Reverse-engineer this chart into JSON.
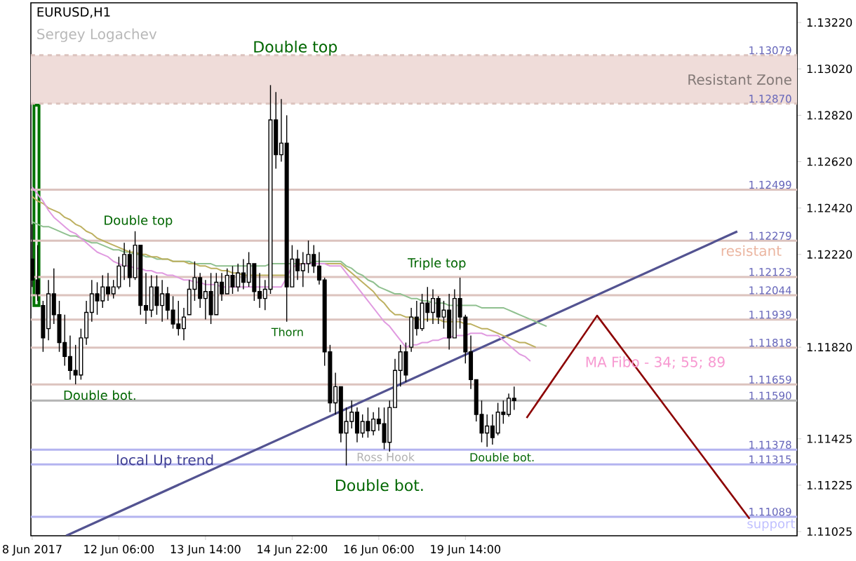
{
  "chart_data": {
    "type": "candlestick",
    "title": "EURUSD,H1",
    "subtitle": "Sergey Logachev",
    "categories": [
      "8 Jun 2017",
      null,
      null,
      null,
      null,
      null,
      null,
      null,
      null,
      null,
      null,
      null,
      null,
      null,
      null,
      null,
      "12 Jun 06:00",
      null,
      null,
      null,
      null,
      null,
      null,
      null,
      null,
      null,
      null,
      null,
      null,
      null,
      null,
      null,
      "13 Jun 14:00",
      null,
      null,
      null,
      null,
      null,
      null,
      null,
      null,
      null,
      null,
      null,
      null,
      null,
      null,
      null,
      "14 Jun 22:00",
      null,
      null,
      null,
      null,
      null,
      null,
      null,
      null,
      null,
      null,
      null,
      null,
      null,
      null,
      null,
      "16 Jun 06:00",
      null,
      null,
      null,
      null,
      null,
      null,
      null,
      null,
      null,
      null,
      null,
      null,
      null,
      null,
      null,
      "19 Jun 14:00",
      null,
      null,
      null,
      null,
      null,
      null,
      null,
      null,
      null,
      null,
      null,
      null,
      null,
      null,
      null,
      null,
      null,
      null,
      null,
      null,
      null,
      null,
      null,
      null,
      null,
      null,
      null,
      null,
      null,
      null,
      null,
      null,
      null,
      null,
      null,
      null,
      null,
      null,
      null,
      null,
      null,
      null,
      null,
      null,
      null,
      null,
      null,
      null,
      null,
      null,
      null,
      null,
      null,
      null,
      null,
      null,
      null,
      null,
      null,
      null,
      null
    ],
    "ohlc": [
      [
        1.122,
        1.1235,
        1.1208,
        1.1211
      ],
      [
        1.1211,
        1.1226,
        1.1202,
        1.1205
      ],
      [
        1.12,
        1.1202,
        1.118,
        1.1186
      ],
      [
        1.119,
        1.1211,
        1.1185,
        1.1205
      ],
      [
        1.1205,
        1.1216,
        1.1192,
        1.1196
      ],
      [
        1.1196,
        1.1202,
        1.118,
        1.1184
      ],
      [
        1.1184,
        1.1196,
        1.1174,
        1.1178
      ],
      [
        1.1178,
        1.1187,
        1.1168,
        1.1172
      ],
      [
        1.1172,
        1.1183,
        1.1166,
        1.117
      ],
      [
        1.117,
        1.119,
        1.1168,
        1.1186
      ],
      [
        1.1186,
        1.1202,
        1.1183,
        1.1197
      ],
      [
        1.1197,
        1.1211,
        1.1193,
        1.1205
      ],
      [
        1.1205,
        1.121,
        1.1196,
        1.1202
      ],
      [
        1.1202,
        1.1213,
        1.1199,
        1.1208
      ],
      [
        1.1208,
        1.1214,
        1.1202,
        1.1205
      ],
      [
        1.1205,
        1.1211,
        1.1203,
        1.1208
      ],
      [
        1.1208,
        1.1221,
        1.1207,
        1.1217
      ],
      [
        1.1217,
        1.1227,
        1.1211,
        1.1222
      ],
      [
        1.1222,
        1.1224,
        1.1208,
        1.1212
      ],
      [
        1.1212,
        1.1232,
        1.1211,
        1.1226
      ],
      [
        1.1226,
        1.1226,
        1.1196,
        1.12
      ],
      [
        1.12,
        1.1214,
        1.1192,
        1.1198
      ],
      [
        1.1198,
        1.1213,
        1.1195,
        1.1208
      ],
      [
        1.1208,
        1.1213,
        1.1196,
        1.12
      ],
      [
        1.12,
        1.1211,
        1.1193,
        1.1205
      ],
      [
        1.1205,
        1.1208,
        1.1194,
        1.1198
      ],
      [
        1.1198,
        1.1204,
        1.119,
        1.1192
      ],
      [
        1.1192,
        1.1202,
        1.1187,
        1.119
      ],
      [
        1.119,
        1.1199,
        1.1185,
        1.1195
      ],
      [
        1.1196,
        1.1211,
        1.1196,
        1.1207
      ],
      [
        1.1207,
        1.1219,
        1.1202,
        1.1212
      ],
      [
        1.1212,
        1.1214,
        1.1199,
        1.1203
      ],
      [
        1.1203,
        1.1211,
        1.1194,
        1.1206
      ],
      [
        1.1206,
        1.1214,
        1.1192,
        1.1196
      ],
      [
        1.1196,
        1.1214,
        1.1196,
        1.121
      ],
      [
        1.121,
        1.1214,
        1.1202,
        1.1205
      ],
      [
        1.1205,
        1.1216,
        1.1205,
        1.1213
      ],
      [
        1.1213,
        1.1217,
        1.1205,
        1.1208
      ],
      [
        1.1208,
        1.1218,
        1.1206,
        1.1214
      ],
      [
        1.1214,
        1.122,
        1.1207,
        1.121
      ],
      [
        1.121,
        1.1223,
        1.1208,
        1.1218
      ],
      [
        1.1218,
        1.1218,
        1.1202,
        1.1206
      ],
      [
        1.1206,
        1.1214,
        1.1199,
        1.1203
      ],
      [
        1.1203,
        1.1211,
        1.1198,
        1.1207
      ],
      [
        1.1207,
        1.1295,
        1.1205,
        1.128
      ],
      [
        1.128,
        1.1292,
        1.1259,
        1.1265
      ],
      [
        1.1265,
        1.1289,
        1.1262,
        1.127
      ],
      [
        1.127,
        1.1282,
        1.1193,
        1.1208
      ],
      [
        1.1208,
        1.1226,
        1.1208,
        1.122
      ],
      [
        1.122,
        1.1224,
        1.1211,
        1.1215
      ],
      [
        1.1215,
        1.1223,
        1.1208,
        1.1218
      ],
      [
        1.1218,
        1.1228,
        1.1214,
        1.1222
      ],
      [
        1.1222,
        1.1226,
        1.1214,
        1.1217
      ],
      [
        1.1217,
        1.1223,
        1.1209,
        1.1211
      ],
      [
        1.1211,
        1.1212,
        1.1174,
        1.118
      ],
      [
        1.118,
        1.1183,
        1.1154,
        1.1158
      ],
      [
        1.1158,
        1.1171,
        1.1153,
        1.1165
      ],
      [
        1.1165,
        1.1165,
        1.1141,
        1.1145
      ],
      [
        1.1145,
        1.1156,
        1.1131,
        1.115
      ],
      [
        1.115,
        1.1159,
        1.1147,
        1.1154
      ],
      [
        1.1154,
        1.1156,
        1.1141,
        1.1145
      ],
      [
        1.1145,
        1.1153,
        1.1143,
        1.115
      ],
      [
        1.115,
        1.1156,
        1.1143,
        1.1146
      ],
      [
        1.1146,
        1.1154,
        1.1144,
        1.1151
      ],
      [
        1.1151,
        1.1156,
        1.1146,
        1.1149
      ],
      [
        1.1149,
        1.1156,
        1.1138,
        1.1141
      ],
      [
        1.1141,
        1.1159,
        1.1137,
        1.1156
      ],
      [
        1.1156,
        1.1177,
        1.1156,
        1.1172
      ],
      [
        1.1172,
        1.1183,
        1.1165,
        1.118
      ],
      [
        1.118,
        1.1184,
        1.1167,
        1.117
      ],
      [
        1.1182,
        1.1199,
        1.118,
        1.1195
      ],
      [
        1.1195,
        1.1202,
        1.1187,
        1.119
      ],
      [
        1.119,
        1.1205,
        1.1189,
        1.1201
      ],
      [
        1.1201,
        1.1208,
        1.1193,
        1.1197
      ],
      [
        1.1197,
        1.1207,
        1.1192,
        1.1203
      ],
      [
        1.1203,
        1.1204,
        1.1192,
        1.1195
      ],
      [
        1.1195,
        1.1202,
        1.119,
        1.1198
      ],
      [
        1.1198,
        1.1205,
        1.1181,
        1.1186
      ],
      [
        1.1186,
        1.1207,
        1.1186,
        1.1203
      ],
      [
        1.1203,
        1.1212,
        1.119,
        1.1195
      ],
      [
        1.1195,
        1.1196,
        1.1175,
        1.118
      ],
      [
        1.118,
        1.1187,
        1.1164,
        1.1168
      ],
      [
        1.1168,
        1.1168,
        1.115,
        1.1153
      ],
      [
        1.1153,
        1.1159,
        1.1141,
        1.1145
      ],
      [
        1.1145,
        1.1153,
        1.1139,
        1.1148
      ],
      [
        1.1148,
        1.1153,
        1.114,
        1.1143
      ],
      [
        1.1145,
        1.1158,
        1.1144,
        1.1154
      ],
      [
        1.1154,
        1.1159,
        1.1149,
        1.1153
      ],
      [
        1.1153,
        1.1162,
        1.1152,
        1.116
      ],
      [
        1.116,
        1.1165,
        1.1155,
        1.1159
      ],
      null,
      null,
      null,
      null,
      null,
      null,
      null,
      null,
      null,
      null,
      null,
      null,
      null,
      null,
      null,
      null,
      null,
      null,
      null,
      null,
      null,
      null,
      null,
      null,
      null,
      null,
      null,
      null,
      null,
      null,
      null,
      null,
      null,
      null,
      null,
      null,
      null,
      null,
      null,
      null,
      null,
      null,
      null,
      null,
      null,
      null,
      null,
      null,
      null,
      null,
      null,
      null
    ],
    "color": "#000000",
    "series": [
      {
        "type": "line",
        "color": "#8fc08f",
        "values": [
          1.1236,
          1.1235,
          1.1234,
          1.1234,
          1.1233,
          1.1232,
          1.1231,
          1.123,
          1.123,
          1.1229,
          1.1228,
          1.1227,
          1.1227,
          1.1226,
          1.1225,
          1.1224,
          1.1224,
          1.1223,
          1.1223,
          1.1222,
          1.1222,
          1.1221,
          1.1221,
          1.122,
          1.122,
          1.122,
          1.1219,
          1.1219,
          1.1219,
          1.1219,
          1.1218,
          1.1218,
          1.1218,
          1.1218,
          1.1217,
          1.1217,
          1.1217,
          1.1217,
          1.1217,
          1.1217,
          1.1217,
          1.1217,
          1.1217,
          1.1217,
          1.1218,
          1.1218,
          1.1218,
          1.1218,
          1.1218,
          1.1218,
          1.1218,
          1.1218,
          1.1219,
          1.1219,
          1.1219,
          1.1219,
          1.1219,
          1.1219,
          1.1217,
          1.1216,
          1.1214,
          1.1213,
          1.1211,
          1.121,
          1.1208,
          1.1207,
          1.1206,
          1.1205,
          1.1205,
          1.1204,
          1.1203,
          1.1203,
          1.1202,
          1.1202,
          1.1201,
          1.1201,
          1.1201,
          1.12,
          1.12,
          1.12,
          1.12,
          1.12,
          1.12,
          1.1199,
          1.1199,
          1.1199,
          1.1199,
          1.1199,
          1.1198,
          1.1197,
          1.1196,
          1.1195,
          1.1194,
          1.1193,
          1.1192,
          1.1191,
          null,
          null,
          null,
          null,
          null,
          null,
          null,
          null,
          null,
          null,
          null,
          null,
          null,
          null,
          null,
          null,
          null,
          null,
          null,
          null,
          null,
          null,
          null,
          null,
          null,
          null,
          null,
          null,
          null,
          null,
          null,
          null,
          null,
          null,
          null,
          null,
          null,
          null,
          null,
          null,
          null,
          null,
          null,
          null,
          null,
          null
        ]
      },
      {
        "type": "line",
        "color": "#bdb060",
        "values": [
          1.1247,
          1.1245,
          1.1244,
          1.1242,
          1.1241,
          1.124,
          1.1238,
          1.1237,
          1.1235,
          1.1234,
          1.1232,
          1.1231,
          1.1229,
          1.1228,
          1.1227,
          1.1226,
          1.1225,
          1.1224,
          1.1223,
          1.1223,
          1.1222,
          1.1222,
          1.1221,
          1.1221,
          1.122,
          1.122,
          1.1219,
          1.1219,
          1.1219,
          1.1218,
          1.1218,
          1.1217,
          1.1217,
          1.1216,
          1.1216,
          1.1215,
          1.1215,
          1.1214,
          1.1214,
          1.1213,
          1.1213,
          1.1213,
          1.1213,
          1.1213,
          1.1213,
          1.1213,
          1.1213,
          1.1213,
          1.1216,
          1.1218,
          1.1218,
          1.1218,
          1.1218,
          1.1218,
          1.1218,
          1.1218,
          1.1218,
          1.1218,
          1.1216,
          1.1214,
          1.1212,
          1.121,
          1.1208,
          1.1206,
          1.1203,
          1.1201,
          1.1198,
          1.1196,
          1.1196,
          1.1195,
          1.1195,
          1.1194,
          1.1194,
          1.1194,
          1.1194,
          1.1194,
          1.1193,
          1.1193,
          1.1193,
          1.1193,
          1.1192,
          1.1192,
          1.1191,
          1.119,
          1.119,
          1.1189,
          1.1188,
          1.1187,
          1.1186,
          1.1185,
          1.1184,
          1.1184,
          1.1183,
          1.1182,
          null,
          null,
          null,
          null,
          null,
          null,
          null,
          null,
          null,
          null,
          null,
          null,
          null,
          null,
          null,
          null,
          null,
          null,
          null,
          null,
          null,
          null,
          null,
          null,
          null,
          null,
          null,
          null,
          null,
          null,
          null,
          null,
          null,
          null,
          null,
          null,
          null,
          null,
          null,
          null,
          null,
          null,
          null,
          null,
          null,
          null,
          null,
          null
        ]
      },
      {
        "type": "line",
        "color": "#e09ae0",
        "values": [
          1.1251,
          1.1248,
          1.1245,
          1.1241,
          1.1238,
          1.1236,
          1.1234,
          1.1232,
          1.1231,
          1.1229,
          1.1227,
          1.1225,
          1.1223,
          1.1222,
          1.1221,
          1.1219,
          1.1218,
          1.1217,
          1.1217,
          1.1216,
          1.1216,
          1.1215,
          1.1215,
          1.1214,
          1.1214,
          1.1213,
          1.1213,
          1.1212,
          1.1211,
          1.1211,
          1.121,
          1.121,
          1.1209,
          1.1209,
          1.1209,
          1.1208,
          1.1208,
          1.1208,
          1.1208,
          1.1208,
          1.1208,
          1.1208,
          1.1208,
          1.1208,
          1.1208,
          1.1208,
          1.1208,
          1.1212,
          1.1217,
          1.1217,
          1.1218,
          1.1218,
          1.1218,
          1.1218,
          1.1218,
          1.1217,
          1.1217,
          1.1217,
          1.1214,
          1.1211,
          1.1208,
          1.1205,
          1.1202,
          1.1199,
          1.1196,
          1.1193,
          1.1191,
          1.1188,
          1.1185,
          1.1182,
          1.1183,
          1.1183,
          1.1184,
          1.1184,
          1.1185,
          1.1185,
          1.1186,
          1.1186,
          1.1187,
          1.1187,
          1.1187,
          1.1188,
          1.1188,
          1.1188,
          1.1187,
          1.1187,
          1.1187,
          1.1185,
          1.1183,
          1.1181,
          1.1179,
          1.1178,
          1.1176,
          null,
          null,
          null,
          null,
          null,
          null,
          null,
          null,
          null,
          null,
          null,
          null,
          null,
          null,
          null,
          null,
          null,
          null,
          null,
          null,
          null,
          null,
          null,
          null,
          null,
          null,
          null,
          null,
          null,
          null,
          null,
          null,
          null,
          null,
          null,
          null,
          null,
          null,
          null,
          null,
          null,
          null,
          null,
          null,
          null,
          null,
          null,
          null,
          null
        ]
      }
    ],
    "ylim": [
      1.11007,
      1.13305
    ],
    "yticks": [
      "1.13220",
      "1.13020",
      "1.12820",
      "1.12620",
      "1.12420",
      "1.12220",
      "1.11820",
      "1.11425",
      "1.11225",
      "1.11025"
    ],
    "bands": [
      {
        "axis": "y",
        "from": 1.1287,
        "to": 1.13079,
        "label": "Resistant Zone",
        "color": "#efdcd9"
      }
    ],
    "ref_lines": [
      {
        "axis": "y",
        "value": 1.13079,
        "label": "1.13079",
        "color": "#dcc3be",
        "line_style": "dashed"
      },
      {
        "axis": "y",
        "value": 1.1287,
        "label": "1.12870",
        "color": "#dcc3be",
        "line_style": "dashed"
      },
      {
        "axis": "y",
        "value": 1.12499,
        "label": "1.12499",
        "color": "#dcc3be"
      },
      {
        "axis": "y",
        "value": 1.12279,
        "label": "1.12279",
        "color": "#dcc3be"
      },
      {
        "axis": "y",
        "value": 1.12123,
        "label": "1.12123",
        "color": "#dcc3be"
      },
      {
        "axis": "y",
        "value": 1.12044,
        "label": "1.12044",
        "color": "#dcc3be"
      },
      {
        "axis": "y",
        "value": 1.11939,
        "label": "1.11939",
        "color": "#dcc3be"
      },
      {
        "axis": "y",
        "value": 1.11818,
        "label": "1.11818",
        "color": "#dcc3be"
      },
      {
        "axis": "y",
        "value": 1.11659,
        "label": "1.11659",
        "color": "#dcc3be"
      },
      {
        "axis": "y",
        "value": 1.1159,
        "label": "1.11590",
        "color": "#b4b4b4"
      },
      {
        "axis": "y",
        "value": 1.11378,
        "label": "1.11378",
        "color": "#b4b4f0"
      },
      {
        "axis": "y",
        "value": 1.11315,
        "label": "1.11315",
        "color": "#b4b4f0"
      },
      {
        "axis": "y",
        "value": 1.11089,
        "label": "1.11089",
        "color": "#b4b4f0"
      }
    ],
    "annotations": [
      "Double top",
      "Double top",
      {
        "text": "Thorn",
        "y": 1.1193
      },
      "Triple top",
      {
        "text": "Double bot.",
        "y": 1.1166
      },
      "Double bot.",
      {
        "text": "Double bot.",
        "y": 1.1139
      },
      "Ross Hook",
      "local Up trend",
      "MA Fibo - 34; 55; 89",
      "resistant",
      "support"
    ]
  }
}
